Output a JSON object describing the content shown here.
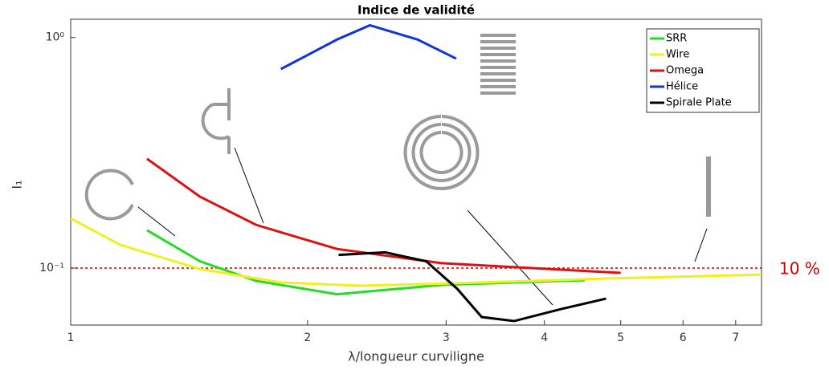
{
  "chart_data": {
    "type": "line",
    "title": "Indice de validité",
    "x_label": "λ/longueur curviligne",
    "y_label": "I₁",
    "xscale": "log",
    "yscale": "log",
    "xlim": [
      1,
      7.55
    ],
    "ylim": [
      0.0566,
      1.2
    ],
    "xticks": [
      1,
      2,
      3,
      4,
      5,
      6,
      7
    ],
    "yticks": [
      {
        "value": 0.1,
        "label": "10⁻¹"
      },
      {
        "value": 1,
        "label": "10⁰"
      }
    ],
    "threshold": {
      "value": 0.1,
      "label": "10 %",
      "color": "#cc0000"
    },
    "legend": "top-right",
    "series": [
      {
        "name": "SRR",
        "color": "#22dd22",
        "x": [
          1.25,
          1.46,
          1.72,
          2.18,
          2.96,
          4.2,
          4.5
        ],
        "values": [
          0.146,
          0.107,
          0.088,
          0.077,
          0.0845,
          0.088,
          0.0885
        ]
      },
      {
        "name": "Wire",
        "color": "#f0f020",
        "x": [
          1,
          1.157,
          1.46,
          1.85,
          2.34,
          3.33,
          4.74,
          7.55
        ],
        "values": [
          0.164,
          0.126,
          0.099,
          0.0866,
          0.0838,
          0.0866,
          0.09,
          0.0937
        ]
      },
      {
        "name": "Omega",
        "color": "#dd1111",
        "x": [
          1.25,
          1.46,
          1.72,
          2.18,
          2.96,
          4.2,
          5
        ],
        "values": [
          0.298,
          0.204,
          0.154,
          0.121,
          0.105,
          0.0984,
          0.0953
        ]
      },
      {
        "name": "Hélice",
        "color": "#1133dd",
        "x": [
          1.85,
          2.18,
          2.4,
          2.76,
          3.09
        ],
        "values": [
          0.73,
          0.98,
          1.13,
          0.98,
          0.81
        ]
      },
      {
        "name": "Spirale Plate",
        "color": "#000000",
        "x": [
          2.19,
          2.51,
          2.83,
          3.1,
          3.33,
          3.66,
          4.2,
          4.79
        ],
        "values": [
          0.114,
          0.117,
          0.107,
          0.0812,
          0.0613,
          0.0589,
          0.0664,
          0.0737
        ]
      }
    ]
  }
}
